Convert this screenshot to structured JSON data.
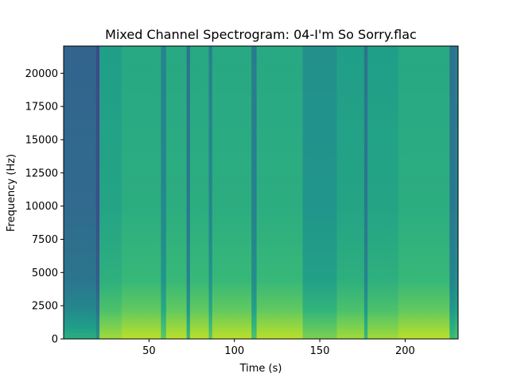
{
  "chart_data": {
    "type": "heatmap",
    "title": "Mixed Channel Spectrogram: 04-I'm So Sorry.flac",
    "xlabel": "Time (s)",
    "ylabel": "Frequency (Hz)",
    "xlim": [
      0,
      231
    ],
    "ylim": [
      0,
      22050
    ],
    "x_ticks": [
      50,
      100,
      150,
      200
    ],
    "x_tick_labels": [
      "50",
      "100",
      "150",
      "200"
    ],
    "y_ticks": [
      0,
      2500,
      5000,
      7500,
      10000,
      12500,
      15000,
      17500,
      20000
    ],
    "y_tick_labels": [
      "0",
      "2500",
      "5000",
      "7500",
      "10000",
      "12500",
      "15000",
      "17500",
      "20000"
    ],
    "colormap": "viridis",
    "grid": false,
    "colors": {
      "low": "#30457e",
      "mid": "#239f8a",
      "high": "#cde11d",
      "peak": "#e7e419"
    },
    "sections": [
      {
        "start": 0,
        "end": 19,
        "level": 0.32
      },
      {
        "start": 19,
        "end": 21,
        "level": 0.22
      },
      {
        "start": 21,
        "end": 34,
        "level": 0.56
      },
      {
        "start": 34,
        "end": 57,
        "level": 0.6
      },
      {
        "start": 57,
        "end": 60,
        "level": 0.45
      },
      {
        "start": 60,
        "end": 72,
        "level": 0.6
      },
      {
        "start": 72,
        "end": 74,
        "level": 0.38
      },
      {
        "start": 74,
        "end": 85,
        "level": 0.6
      },
      {
        "start": 85,
        "end": 87,
        "level": 0.44
      },
      {
        "start": 87,
        "end": 110,
        "level": 0.6
      },
      {
        "start": 110,
        "end": 113,
        "level": 0.42
      },
      {
        "start": 113,
        "end": 140,
        "level": 0.6
      },
      {
        "start": 140,
        "end": 160,
        "level": 0.5
      },
      {
        "start": 160,
        "end": 176,
        "level": 0.56
      },
      {
        "start": 176,
        "end": 178,
        "level": 0.38
      },
      {
        "start": 178,
        "end": 196,
        "level": 0.56
      },
      {
        "start": 196,
        "end": 226,
        "level": 0.6
      },
      {
        "start": 226,
        "end": 229,
        "level": 0.38
      },
      {
        "start": 229,
        "end": 231,
        "level": 0.42
      }
    ]
  }
}
